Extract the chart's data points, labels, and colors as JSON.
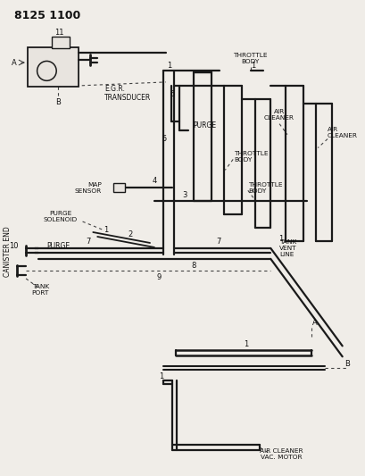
{
  "bg_color": "#f0ede8",
  "line_color": "#1a1a1a",
  "dashed_color": "#444444",
  "text_color": "#111111",
  "title": "8125 1100",
  "egr_label": "E.G.R.\nTRANSDUCER",
  "throttle_body1": "THROTTLE\nBODY",
  "throttle_body2": "THROTTLE\nBODY",
  "throttle_body3": "THROTTLE\nBODY",
  "air_cleaner1": "AIR\nCLEANER",
  "air_cleaner2": "AIR\nCLEANER",
  "map_sensor": "MAP\nSENSOR",
  "purge_solenoid": "PURGE\nSOLENOID",
  "purge": "PURGE",
  "tank_vent_line": "TANK\nVENT\nLINE",
  "tank_port": "TANK\nPORT",
  "canister_end": "CANISTER END",
  "air_cleaner_vac": "AIR CLEANER\nVAC. MOTOR"
}
